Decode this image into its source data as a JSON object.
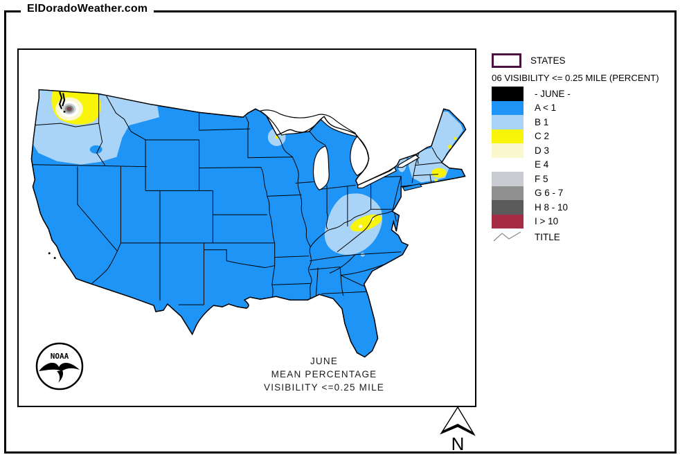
{
  "header": {
    "site_title": "ElDoradoWeather.com"
  },
  "legend": {
    "states_label": "STATES",
    "subtitle": "06 VISIBILITY <= 0.25 MILE (PERCENT)",
    "states_box_border": "#4A1042",
    "classes": [
      {
        "label": "- JUNE -",
        "color": "#000000"
      },
      {
        "label": "A < 1",
        "color": "#1E94F6"
      },
      {
        "label": "B 1",
        "color": "#A9D3F7"
      },
      {
        "label": "C 2",
        "color": "#F9F50A"
      },
      {
        "label": "D 3",
        "color": "#FBF8CF"
      },
      {
        "label": "E 4",
        "color": "#FFFFFF"
      },
      {
        "label": "F 5",
        "color": "#C9CDD3"
      },
      {
        "label": "G 6 - 7",
        "color": "#909090"
      },
      {
        "label": "H 8 - 10",
        "color": "#5A5A5A"
      },
      {
        "label": "I > 10",
        "color": "#A52C44"
      }
    ],
    "title_symbol_label": "TITLE"
  },
  "map": {
    "caption_line1": "JUNE",
    "caption_line2": "MEAN PERCENTAGE",
    "caption_line3": "VISIBILITY <=0.25 MILE",
    "noaa_logo_text": "NOAA",
    "compass_label": "N"
  }
}
